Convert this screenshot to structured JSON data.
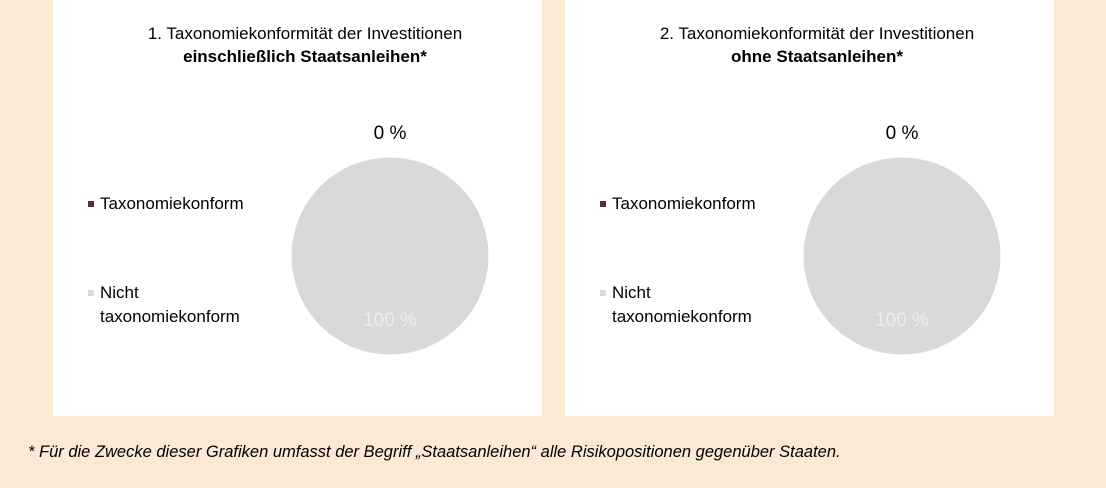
{
  "chart_data": [
    {
      "type": "pie",
      "title": "1. Taxonomiekonformität der Investitionen",
      "title_emphasis": "einschließlich Staatsanleihen*",
      "categories": [
        "Taxonomiekonform",
        "Nicht taxonomiekonform"
      ],
      "values": [
        0,
        100
      ],
      "value_labels": [
        "0 %",
        "100 %"
      ],
      "colors": [
        "#5b2c3f",
        "#d9d9d9"
      ]
    },
    {
      "type": "pie",
      "title": "2. Taxonomiekonformität der Investitionen",
      "title_emphasis": "ohne Staatsanleihen*",
      "categories": [
        "Taxonomiekonform",
        "Nicht taxonomiekonform"
      ],
      "values": [
        0,
        100
      ],
      "value_labels": [
        "0 %",
        "100 %"
      ],
      "colors": [
        "#5b2c3f",
        "#d9d9d9"
      ]
    }
  ],
  "footnote": "* Für die Zwecke dieser Grafiken umfasst der Begriff „Staatsanleihen“ alle Risikopositionen gegenüber Staaten."
}
